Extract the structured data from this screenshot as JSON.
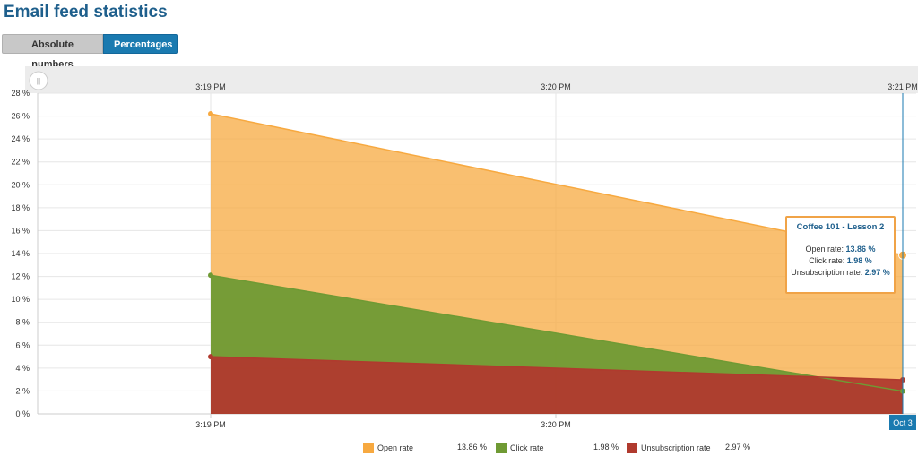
{
  "page": {
    "title": "Email feed statistics"
  },
  "toggle": {
    "absolute_label": "Absolute numbers",
    "percentages_label": "Percentages"
  },
  "tooltip": {
    "title": "Coffee 101 - Lesson 2",
    "open_label": "Open rate:",
    "open_value": "13.86 %",
    "click_label": "Click rate:",
    "click_value": "1.98 %",
    "unsub_label": "Unsubscription rate:",
    "unsub_value": "2.97 %"
  },
  "legend": {
    "items": [
      {
        "label": "Open rate",
        "value": "13.86 %"
      },
      {
        "label": "Click rate",
        "value": "1.98 %"
      },
      {
        "label": "Unsubscription rate",
        "value": "2.97 %"
      }
    ]
  },
  "range_handle_glyph": "||",
  "cursor_date_label": "Oct 3",
  "colors": {
    "open": "#f7a940",
    "click": "#6f9a34",
    "unsub": "#b03a2e",
    "accent": "#1a7ab0"
  },
  "chart_data": {
    "type": "area",
    "x": [
      "3:19 PM",
      "3:21 PM"
    ],
    "top_axis_ticks": [
      "3:19 PM",
      "3:20 PM",
      "3:21 PM"
    ],
    "bottom_axis_ticks": [
      "3:19 PM",
      "3:20 PM"
    ],
    "y_ticks": [
      "0 %",
      "2 %",
      "4 %",
      "6 %",
      "8 %",
      "10 %",
      "12 %",
      "14 %",
      "16 %",
      "18 %",
      "20 %",
      "22 %",
      "24 %",
      "26 %",
      "28 %"
    ],
    "ylim": [
      0,
      28
    ],
    "grid": true,
    "series": [
      {
        "name": "Open rate",
        "values": [
          26.2,
          13.86
        ]
      },
      {
        "name": "Click rate",
        "values": [
          12.1,
          1.98
        ]
      },
      {
        "name": "Unsubscription rate",
        "values": [
          5.0,
          2.97
        ]
      }
    ]
  }
}
